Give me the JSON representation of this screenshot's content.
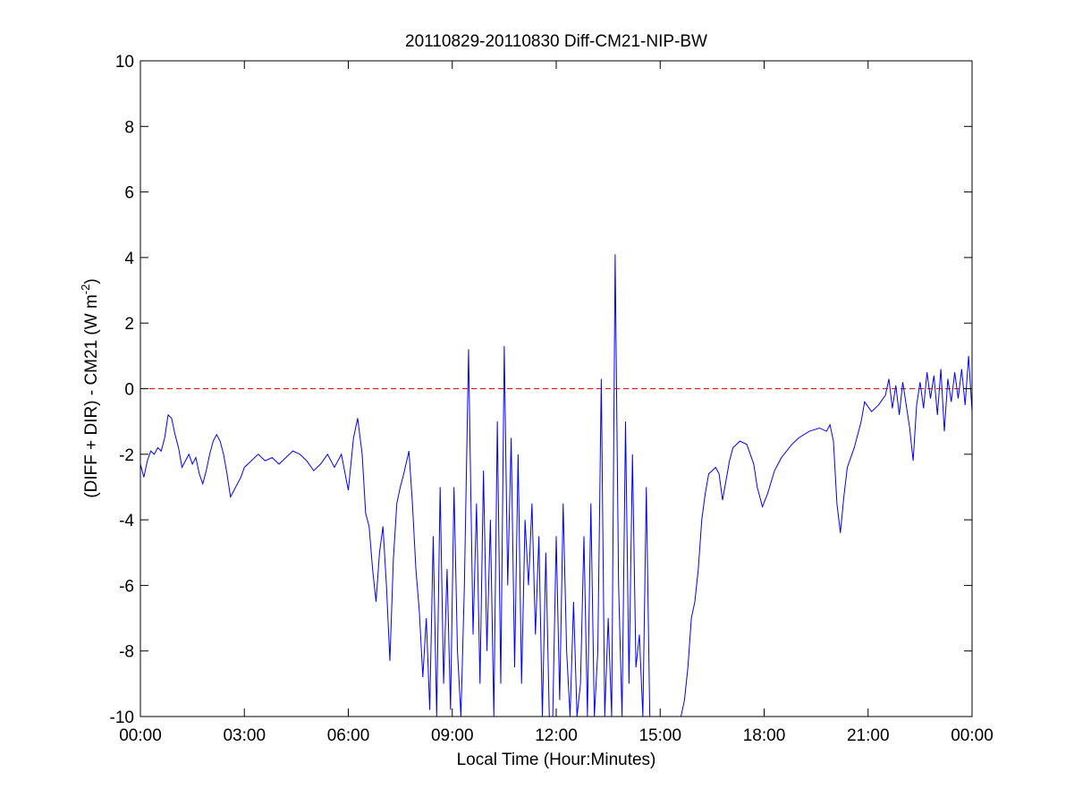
{
  "chart_data": {
    "type": "line",
    "title": "20110829-20110830 Diff-CM21-NIP-BW",
    "xlabel": "Local Time (Hour:Minutes)",
    "ylabel": "(DIFF + DIR) - CM21 (W m",
    "ylabel_sup": "-2",
    "ylabel_end": ")",
    "xlim": [
      0,
      24
    ],
    "xticks": [
      {
        "value": 0,
        "label": "00:00"
      },
      {
        "value": 3,
        "label": "03:00"
      },
      {
        "value": 6,
        "label": "06:00"
      },
      {
        "value": 9,
        "label": "09:00"
      },
      {
        "value": 12,
        "label": "12:00"
      },
      {
        "value": 15,
        "label": "15:00"
      },
      {
        "value": 18,
        "label": "18:00"
      },
      {
        "value": 21,
        "label": "21:00"
      },
      {
        "value": 24,
        "label": "00:00"
      }
    ],
    "ylim": [
      -10,
      10
    ],
    "yticks": [
      -10,
      -8,
      -6,
      -4,
      -2,
      0,
      2,
      4,
      6,
      8,
      10
    ],
    "reference_line": {
      "value": 0,
      "color": "#ff0000"
    },
    "series": [
      {
        "color": "#0000ff",
        "x": [
          0.0,
          0.1,
          0.2,
          0.3,
          0.4,
          0.5,
          0.6,
          0.7,
          0.8,
          0.9,
          1.0,
          1.1,
          1.2,
          1.3,
          1.4,
          1.5,
          1.6,
          1.7,
          1.8,
          1.9,
          2.0,
          2.1,
          2.2,
          2.3,
          2.4,
          2.5,
          2.6,
          2.7,
          2.8,
          2.9,
          3.0,
          3.2,
          3.4,
          3.6,
          3.8,
          4.0,
          4.2,
          4.4,
          4.6,
          4.8,
          5.0,
          5.2,
          5.4,
          5.6,
          5.8,
          6.0,
          6.15,
          6.27,
          6.4,
          6.5,
          6.6,
          6.7,
          6.8,
          6.9,
          7.0,
          7.1,
          7.2,
          7.3,
          7.4,
          7.5,
          7.6,
          7.75,
          7.85,
          7.95,
          8.05,
          8.15,
          8.25,
          8.35,
          8.45,
          8.55,
          8.65,
          8.75,
          8.85,
          8.95,
          9.05,
          9.15,
          9.25,
          9.35,
          9.47,
          9.6,
          9.7,
          9.8,
          9.9,
          10.0,
          10.1,
          10.2,
          10.3,
          10.4,
          10.5,
          10.6,
          10.7,
          10.8,
          10.9,
          11.0,
          11.1,
          11.2,
          11.3,
          11.4,
          11.5,
          11.6,
          11.7,
          11.8,
          11.9,
          12.0,
          12.1,
          12.2,
          12.3,
          12.4,
          12.5,
          12.6,
          12.7,
          12.8,
          12.9,
          13.0,
          13.1,
          13.2,
          13.3,
          13.4,
          13.5,
          13.6,
          13.7,
          13.8,
          13.9,
          14.0,
          14.1,
          14.2,
          14.3,
          14.4,
          14.5,
          14.6,
          14.7,
          14.8,
          15.0,
          15.3,
          15.6,
          15.7,
          15.8,
          15.9,
          16.0,
          16.1,
          16.2,
          16.3,
          16.4,
          16.5,
          16.6,
          16.7,
          16.8,
          16.9,
          17.0,
          17.1,
          17.3,
          17.5,
          17.7,
          17.8,
          17.95,
          18.1,
          18.3,
          18.5,
          18.8,
          19.0,
          19.3,
          19.6,
          19.8,
          19.9,
          20.0,
          20.1,
          20.2,
          20.3,
          20.4,
          20.6,
          20.8,
          20.9,
          21.1,
          21.3,
          21.5,
          21.6,
          21.7,
          21.8,
          21.9,
          22.0,
          22.1,
          22.2,
          22.3,
          22.4,
          22.5,
          22.6,
          22.7,
          22.8,
          22.9,
          23.0,
          23.1,
          23.2,
          23.3,
          23.4,
          23.5,
          23.6,
          23.7,
          23.8,
          23.9,
          24.0
        ],
        "values": [
          -2.3,
          -2.7,
          -2.2,
          -1.9,
          -2.0,
          -1.8,
          -1.9,
          -1.5,
          -0.8,
          -0.9,
          -1.4,
          -1.8,
          -2.4,
          -2.2,
          -2.0,
          -2.3,
          -2.1,
          -2.6,
          -2.9,
          -2.5,
          -2.0,
          -1.6,
          -1.4,
          -1.6,
          -2.0,
          -2.6,
          -3.3,
          -3.1,
          -2.9,
          -2.7,
          -2.4,
          -2.2,
          -2.0,
          -2.2,
          -2.1,
          -2.3,
          -2.1,
          -1.9,
          -2.0,
          -2.2,
          -2.5,
          -2.3,
          -2.0,
          -2.4,
          -2.0,
          -3.1,
          -1.5,
          -0.9,
          -2.0,
          -3.8,
          -4.2,
          -5.5,
          -6.5,
          -5.0,
          -4.2,
          -6.0,
          -8.3,
          -5.2,
          -3.5,
          -3.0,
          -2.6,
          -1.9,
          -3.5,
          -5.5,
          -6.8,
          -8.8,
          -7.0,
          -9.8,
          -4.5,
          -10,
          -3.0,
          -9.0,
          -5.5,
          -9.8,
          -3.0,
          -8.0,
          -10,
          -6.0,
          1.2,
          -7.5,
          -3.5,
          -9.0,
          -2.5,
          -8.0,
          -4.0,
          -10,
          -1.0,
          -9.0,
          1.3,
          -6.0,
          -1.5,
          -8.5,
          -2.0,
          -9.0,
          -4.0,
          -6.0,
          -3.5,
          -7.5,
          -4.5,
          -10,
          -5.0,
          -10,
          -10,
          -4.5,
          -9.5,
          -3.5,
          -8.0,
          -10,
          -6.5,
          -10,
          -9.0,
          -4.5,
          -10,
          -3.5,
          -10,
          -8.0,
          0.3,
          -10,
          -7.0,
          -10,
          4.1,
          -6.0,
          -10,
          -1.0,
          -9.0,
          -2.0,
          -8.5,
          -7.5,
          -10,
          -3.0,
          -10,
          -10,
          -10,
          -10,
          -10,
          -9.5,
          -8.5,
          -7.0,
          -6.5,
          -5.5,
          -4.0,
          -3.2,
          -2.6,
          -2.5,
          -2.4,
          -2.6,
          -3.4,
          -2.8,
          -2.2,
          -1.8,
          -1.6,
          -1.7,
          -2.3,
          -3.0,
          -3.6,
          -3.2,
          -2.5,
          -2.1,
          -1.7,
          -1.5,
          -1.3,
          -1.2,
          -1.3,
          -1.1,
          -1.6,
          -3.5,
          -4.4,
          -3.3,
          -2.4,
          -1.8,
          -1.0,
          -0.4,
          -0.7,
          -0.5,
          -0.2,
          0.3,
          -0.6,
          0.1,
          -0.8,
          0.2,
          -0.5,
          -1.2,
          -2.2,
          -0.5,
          0.2,
          -0.6,
          0.5,
          -0.3,
          0.4,
          -0.8,
          0.6,
          -1.3,
          0.3,
          -0.4,
          0.5,
          -0.3,
          0.6,
          -0.5,
          1.0,
          -0.7
        ]
      }
    ]
  }
}
